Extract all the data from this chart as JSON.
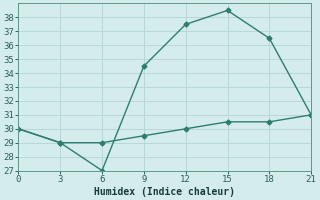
{
  "xlabel": "Humidex (Indice chaleur)",
  "line1_x": [
    0,
    3,
    6,
    9,
    12,
    15,
    18,
    21
  ],
  "line1_y": [
    30,
    29,
    27,
    34.5,
    37.5,
    38.5,
    36.5,
    31
  ],
  "line2_x": [
    0,
    3,
    6,
    9,
    12,
    15,
    18,
    21
  ],
  "line2_y": [
    30,
    29,
    29,
    29.5,
    30,
    30.5,
    30.5,
    31
  ],
  "line_color": "#2e7d6e",
  "bg_color": "#d4ecec",
  "grid_color": "#b8d8d8",
  "xlim": [
    0,
    21
  ],
  "ylim": [
    27,
    39
  ],
  "xticks": [
    0,
    3,
    6,
    9,
    12,
    15,
    18,
    21
  ],
  "yticks": [
    27,
    28,
    29,
    30,
    31,
    32,
    33,
    34,
    35,
    36,
    37,
    38
  ],
  "marker": "D",
  "markersize": 2.5,
  "linewidth": 1.0,
  "tick_fontsize": 6.5,
  "xlabel_fontsize": 7.0
}
